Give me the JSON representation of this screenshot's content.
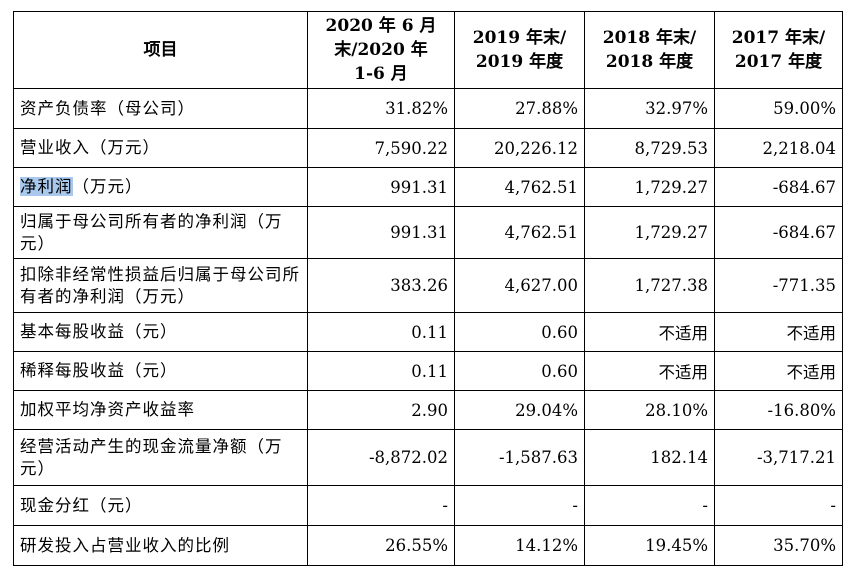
{
  "table": {
    "headers": {
      "item": "项目",
      "c1": [
        "2020 年 6 月",
        "末/2020 年",
        "1-6 月"
      ],
      "c2": [
        "2019 年末/",
        "2019 年度"
      ],
      "c3": [
        "2018 年末/",
        "2018 年度"
      ],
      "c4": [
        "2017 年末/",
        "2017 年度"
      ]
    },
    "rows": [
      {
        "label": "资产负债率（母公司）",
        "values": [
          "31.82%",
          "27.88%",
          "32.97%",
          "59.00%"
        ]
      },
      {
        "label": "营业收入（万元）",
        "values": [
          "7,590.22",
          "20,226.12",
          "8,729.53",
          "2,218.04"
        ]
      },
      {
        "label_highlight": "净利润",
        "label_rest": "（万元）",
        "values": [
          "991.31",
          "4,762.51",
          "1,729.27",
          "-684.67"
        ]
      },
      {
        "label": "归属于母公司所有者的净利润（万元）",
        "values": [
          "991.31",
          "4,762.51",
          "1,729.27",
          "-684.67"
        ]
      },
      {
        "label": "扣除非经常性损益后归属于母公司所有者的净利润（万元）",
        "values": [
          "383.26",
          "4,627.00",
          "1,727.38",
          "-771.35"
        ]
      },
      {
        "label": "基本每股收益（元）",
        "values": [
          "0.11",
          "0.60",
          "不适用",
          "不适用"
        ]
      },
      {
        "label": "稀释每股收益（元）",
        "values": [
          "0.11",
          "0.60",
          "不适用",
          "不适用"
        ]
      },
      {
        "label": "加权平均净资产收益率",
        "values": [
          "2.90",
          "29.04%",
          "28.10%",
          "-16.80%"
        ]
      },
      {
        "label": "经营活动产生的现金流量净额（万元）",
        "values": [
          "-8,872.02",
          "-1,587.63",
          "182.14",
          "-3,717.21"
        ]
      },
      {
        "label": "现金分红（元）",
        "values": [
          "-",
          "-",
          "-",
          "-"
        ]
      },
      {
        "label": "研发投入占营业收入的比例",
        "values": [
          "26.55%",
          "14.12%",
          "19.45%",
          "35.70%"
        ]
      }
    ]
  }
}
